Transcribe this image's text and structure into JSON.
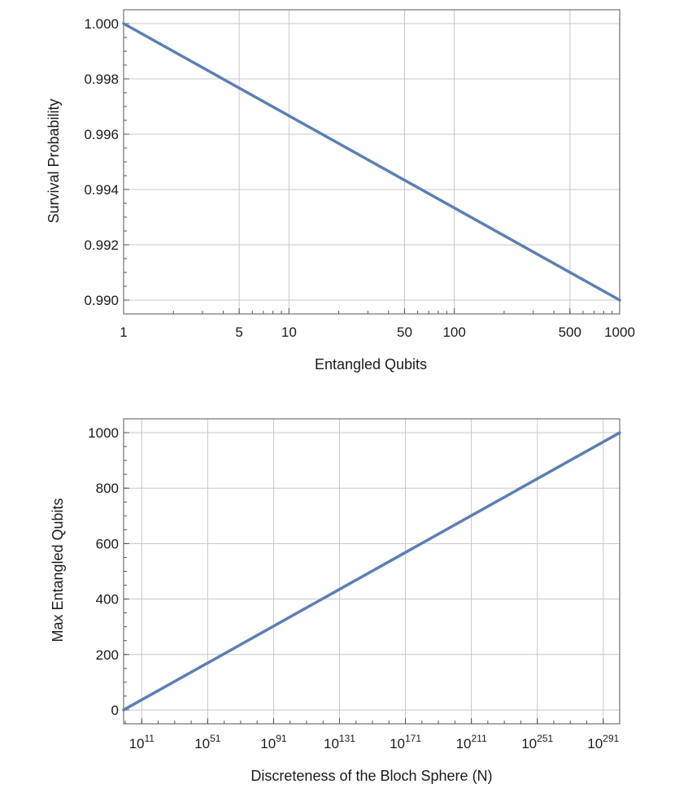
{
  "chart_data": [
    {
      "type": "line",
      "xlabel": "Entangled Qubits",
      "ylabel": "Survival Probability",
      "x_scale": "log",
      "xlim": [
        1,
        1000
      ],
      "ylim": [
        0.9895,
        1.0005
      ],
      "x_ticks": [
        {
          "value": 1,
          "label": "1"
        },
        {
          "value": 5,
          "label": "5"
        },
        {
          "value": 10,
          "label": "10"
        },
        {
          "value": 50,
          "label": "50"
        },
        {
          "value": 100,
          "label": "100"
        },
        {
          "value": 500,
          "label": "500"
        },
        {
          "value": 1000,
          "label": "1000"
        }
      ],
      "y_ticks": [
        {
          "value": 0.99,
          "label": "0.990"
        },
        {
          "value": 0.992,
          "label": "0.992"
        },
        {
          "value": 0.994,
          "label": "0.994"
        },
        {
          "value": 0.996,
          "label": "0.996"
        },
        {
          "value": 0.998,
          "label": "0.998"
        },
        {
          "value": 1.0,
          "label": "1.000"
        }
      ],
      "grid": true,
      "series": [
        {
          "color": "#5b7fb5",
          "x": [
            1,
            1000
          ],
          "y": [
            1.0,
            0.99
          ]
        }
      ]
    },
    {
      "type": "line",
      "xlabel": "Discreteness of the Bloch Sphere (N)",
      "ylabel": "Max Entangled Qubits",
      "x_scale": "log",
      "x_exponent_range": [
        0,
        301
      ],
      "ylim": [
        -50,
        1050
      ],
      "x_ticks": [
        {
          "base": "10",
          "exp": "11"
        },
        {
          "base": "10",
          "exp": "51"
        },
        {
          "base": "10",
          "exp": "91"
        },
        {
          "base": "10",
          "exp": "131"
        },
        {
          "base": "10",
          "exp": "171"
        },
        {
          "base": "10",
          "exp": "211"
        },
        {
          "base": "10",
          "exp": "251"
        },
        {
          "base": "10",
          "exp": "291"
        }
      ],
      "y_ticks": [
        {
          "value": 0,
          "label": "0"
        },
        {
          "value": 200,
          "label": "200"
        },
        {
          "value": 400,
          "label": "400"
        },
        {
          "value": 600,
          "label": "600"
        },
        {
          "value": 800,
          "label": "800"
        },
        {
          "value": 1000,
          "label": "1000"
        }
      ],
      "grid": true,
      "series": [
        {
          "color": "#5b7fb5",
          "x_exponent": [
            0,
            301
          ],
          "y": [
            0,
            1000
          ]
        }
      ]
    }
  ]
}
